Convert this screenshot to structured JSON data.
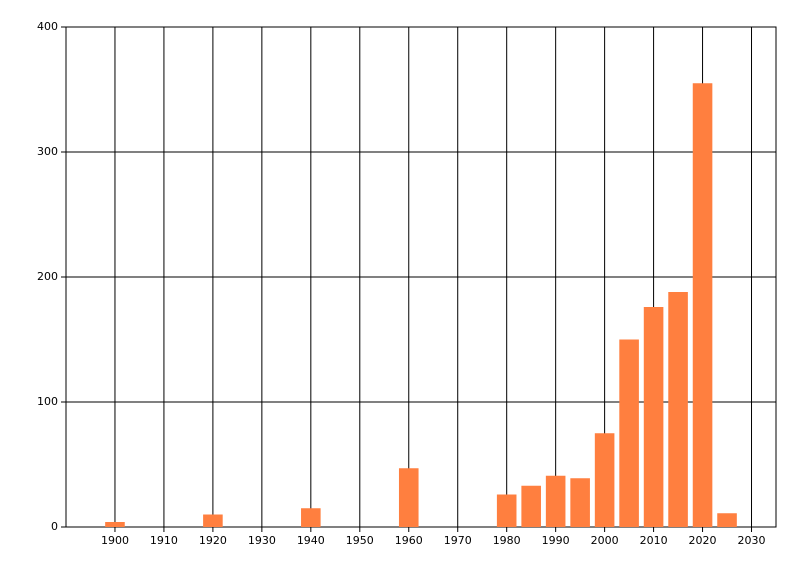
{
  "chart_data": {
    "type": "bar",
    "x": [
      1900,
      1920,
      1940,
      1960,
      1980,
      1985,
      1990,
      1995,
      2000,
      2005,
      2010,
      2015,
      2020,
      2025
    ],
    "values": [
      4,
      10,
      15,
      47,
      26,
      33,
      41,
      39,
      75,
      150,
      176,
      188,
      355,
      11
    ],
    "color": "#ff7f3f",
    "xlim": [
      1890,
      2035
    ],
    "xticks": [
      1900,
      1910,
      1920,
      1930,
      1940,
      1950,
      1960,
      1970,
      1980,
      1990,
      2000,
      2010,
      2020,
      2030
    ],
    "ylim": [
      0,
      400
    ],
    "yticks": [
      0,
      100,
      200,
      300,
      400
    ],
    "grid": true
  }
}
